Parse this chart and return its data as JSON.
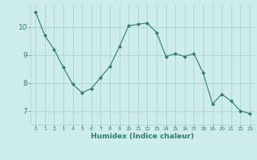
{
  "x": [
    0,
    1,
    2,
    3,
    4,
    5,
    6,
    7,
    8,
    9,
    10,
    11,
    12,
    13,
    14,
    15,
    16,
    17,
    18,
    19,
    20,
    21,
    22,
    23
  ],
  "y": [
    10.55,
    9.7,
    9.2,
    8.55,
    7.95,
    7.65,
    7.8,
    8.2,
    8.6,
    9.3,
    10.05,
    10.1,
    10.15,
    9.8,
    8.95,
    9.05,
    8.95,
    9.05,
    8.35,
    7.25,
    7.6,
    7.35,
    7.0,
    6.9
  ],
  "line_color": "#2e7d6e",
  "marker": "D",
  "marker_size": 2.0,
  "bg_color": "#ceecea",
  "grid_color": "#aad4cf",
  "xlabel": "Humidex (Indice chaleur)",
  "ylim": [
    6.5,
    10.8
  ],
  "xlim": [
    -0.5,
    23.5
  ],
  "yticks": [
    7,
    8,
    9,
    10
  ],
  "xtick_labels": [
    "0",
    "1",
    "2",
    "3",
    "4",
    "5",
    "6",
    "7",
    "8",
    "9",
    "10",
    "11",
    "12",
    "13",
    "14",
    "15",
    "16",
    "17",
    "18",
    "19",
    "20",
    "21",
    "22",
    "23"
  ]
}
